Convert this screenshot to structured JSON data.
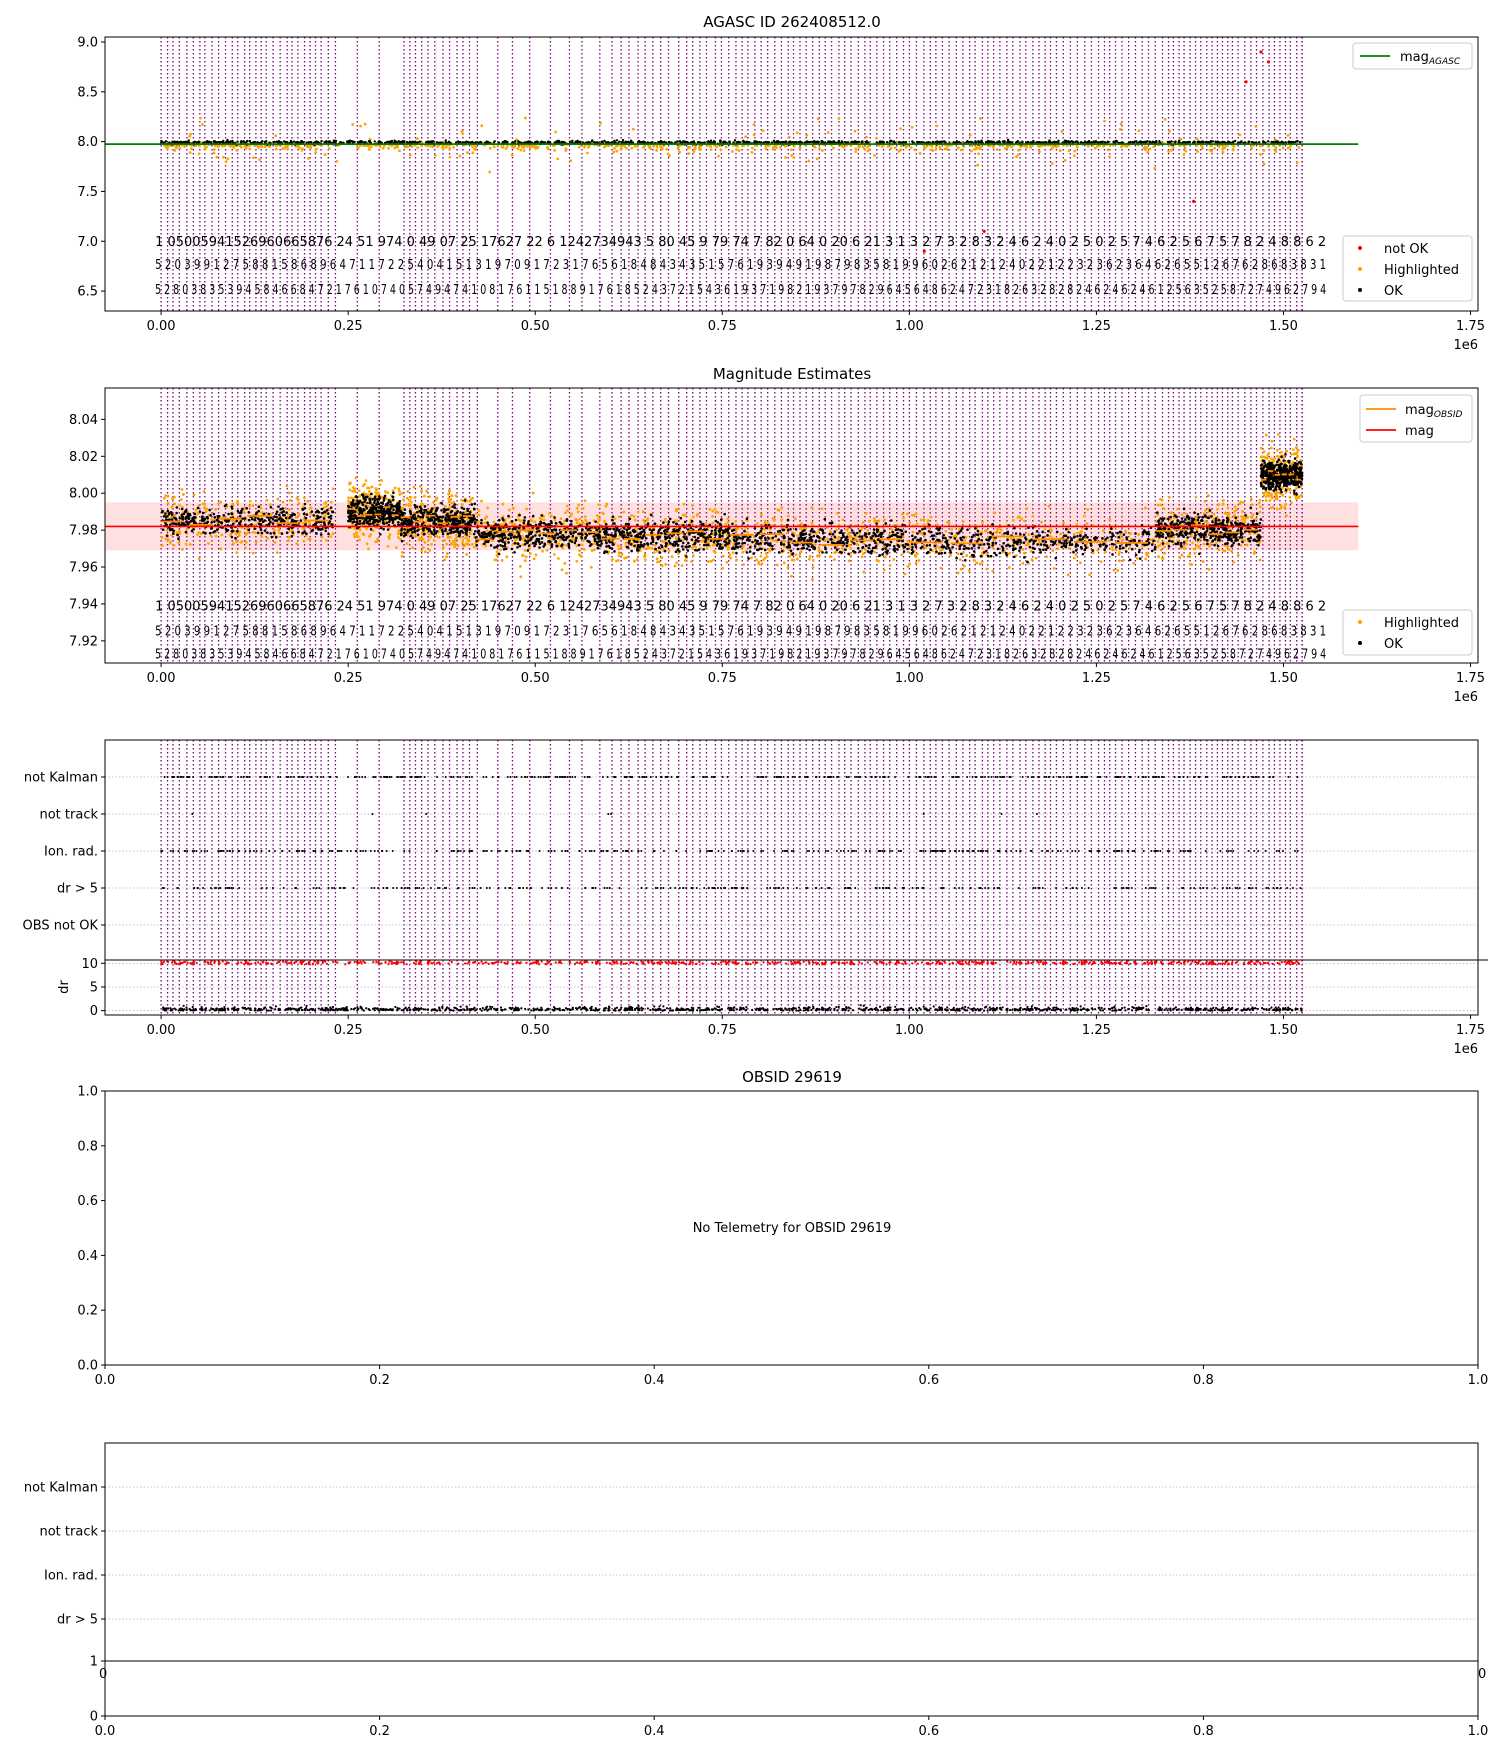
{
  "chart_data": [
    {
      "id": "agasc",
      "type": "scatter",
      "title": "AGASC ID 262408512.0",
      "xlim": [
        -75000,
        1760000
      ],
      "ylim": [
        6.3,
        9.05
      ],
      "xticks": [
        0,
        250000,
        500000,
        750000,
        1000000,
        1250000,
        1500000,
        1750000
      ],
      "xtick_labels": [
        "0.00",
        "0.25",
        "0.50",
        "0.75",
        "1.00",
        "1.25",
        "1.50",
        "1.75"
      ],
      "x_offset_label": "1e6",
      "yticks": [
        6.5,
        7.0,
        7.5,
        8.0,
        8.5,
        9.0
      ],
      "ytick_labels": [
        "6.5",
        "7.0",
        "7.5",
        "8.0",
        "8.5",
        "9.0"
      ],
      "legend_upper": [
        {
          "label": "mag",
          "sub": "AGASC",
          "color": "#008000",
          "kind": "line"
        }
      ],
      "legend_lower": [
        {
          "label": "not OK",
          "color": "#ff0000",
          "kind": "dot"
        },
        {
          "label": "Highlighted",
          "color": "#ffa500",
          "kind": "dot"
        },
        {
          "label": "OK",
          "color": "#000000",
          "kind": "dot"
        }
      ],
      "legend_upper_position": "top-right",
      "legend_lower_position": "bottom-right",
      "agasc_mag": 7.975,
      "agasc_x": [
        -75000,
        1600000
      ],
      "ok_level": 7.99,
      "data_x": [
        0,
        1525000
      ],
      "ok_spread": 0.06,
      "highlight_spread": 0.35,
      "red_points": [
        [
          1470000,
          8.9
        ],
        [
          1480000,
          8.8
        ],
        [
          1020000,
          6.9
        ],
        [
          1100000,
          7.1
        ],
        [
          1380000,
          7.4
        ],
        [
          1450000,
          8.6
        ]
      ],
      "obsid_label_rows": [
        {
          "level": 6.95,
          "text": "1 05005941526960665876 24   51 974 0 49 07 25  17627 22 6 1242734943 5 80 45 9 79 74 7 82 0 64 0 20 6 21 3 1 3 2 7 3 2 8 3 2 4 6 2 4 0 2 5 0 2 5 7 4 6 2 5 6 7 5 7 8 2 4 8 8 6 2"
        },
        {
          "level": 6.72,
          "text": "5 2 0 3 9 9 1 2 7 5 8 8 1 5 8 6 8 9 6 4 7 1    1 7 2 2 5 4 0 4 1 5 1 3 1 9 7 0 9   1 7 2 3 1 7 6 5 6   1 8 4 8 4 3 4 3 5 1 5 7 6 1 9 3 9 4 9 1 9 8 7 9 8 3 5 8 1 9 9 6 0 2 6 2 1 2 1 2 4 0 2 2 1 2 2 3 2 3 6 2 3 6 4 6 2 6 5 5 1 2 6 7 6 2 8 6 8 3 8 3 1"
        },
        {
          "level": 6.47,
          "text": "5 2 8 0 3 8 3 5 3 9 4 5 8 4 6 6 8 4 7 2 1 7 6 1 0 7 4 0 5 7 4 9 4 7 4 1 0 8 1 7 6 1 1  5 1 8 8 9  1 7 6 1 8 5 2 4 3 7 2 1 5 4 3 6 1 9 3 7 1 9 8 2 1 9 3 7 9 7 8 2 9 6 4 5 6 4 8 6 2 4 7 2 3 1 8 2 6 3 2 8 2 8 2 4 6 2 4 6 2 4 6 1 2 5 6 3 5 2 5 8 7 2 7 4 9 6 2 7 9 4"
        }
      ],
      "obs_boundaries_note": "purple dotted vertical lines mark observation boundaries"
    },
    {
      "id": "magest",
      "type": "scatter",
      "title": "Magnitude Estimates",
      "xlim": [
        -75000,
        1760000
      ],
      "ylim": [
        7.908,
        8.057
      ],
      "xticks": [
        0,
        250000,
        500000,
        750000,
        1000000,
        1250000,
        1500000,
        1750000
      ],
      "xtick_labels": [
        "0.00",
        "0.25",
        "0.50",
        "0.75",
        "1.00",
        "1.25",
        "1.50",
        "1.75"
      ],
      "x_offset_label": "1e6",
      "yticks": [
        7.92,
        7.94,
        7.96,
        7.98,
        8.0,
        8.02,
        8.04
      ],
      "ytick_labels": [
        "7.92",
        "7.94",
        "7.96",
        "7.98",
        "8.00",
        "8.02",
        "8.04"
      ],
      "legend_upper": [
        {
          "label": "mag",
          "sub": "OBSID",
          "color": "#ff8c00",
          "kind": "line"
        },
        {
          "label": "mag",
          "sub": "",
          "color": "#ff0000",
          "kind": "line"
        }
      ],
      "legend_lower": [
        {
          "label": "Highlighted",
          "color": "#ffa500",
          "kind": "dot"
        },
        {
          "label": "OK",
          "color": "#000000",
          "kind": "dot"
        }
      ],
      "mag_mean": 7.982,
      "mag_band": [
        7.969,
        7.995
      ],
      "mag_x": [
        -75000,
        1600000
      ],
      "segments": [
        {
          "x0": 0,
          "x1": 230000,
          "mag": 7.985
        },
        {
          "x0": 250000,
          "x1": 320000,
          "mag": 7.99
        },
        {
          "x0": 320000,
          "x1": 420000,
          "mag": 7.985
        },
        {
          "x0": 420000,
          "x1": 590000,
          "mag": 7.978
        },
        {
          "x0": 590000,
          "x1": 760000,
          "mag": 7.977
        },
        {
          "x0": 760000,
          "x1": 1000000,
          "mag": 7.975
        },
        {
          "x0": 1000000,
          "x1": 1330000,
          "mag": 7.974
        },
        {
          "x0": 1330000,
          "x1": 1470000,
          "mag": 7.98
        },
        {
          "x0": 1470000,
          "x1": 1525000,
          "mag": 8.01
        }
      ],
      "obsid_label_rows": [
        {
          "level": 7.9365,
          "text": "1 05005941526960665876 24   51 974 0 49 07 25  17627 22 6 1242734943 5 80 45 9 79 74 7 82 0 64 0 20 6 21 3 1 3 2 7 3 2 8 3 2 4 6 2 4 0 2 5 0 2 5 7 4 6 2 5 6 7 5 7 8 2 4 8 8 6 2"
        },
        {
          "level": 7.923,
          "text": "5 2 0 3 9 9 1 2 7 5 8 8 1 5 8 6 8 9 6 4 7 1    1 7 2 2 5 4 0 4 1 5 1 3 1 9 7 0 9   1 7 2 3 1 7 6 5 6   1 8 4 8 4 3 4 3 5 1 5 7 6 1 9 3 9 4 9 1 9 8 7 9 8 3 5 8 1 9 9 6 0 2 6 2 1 2 1 2 4 0 2 2 1 2 2 3 2 3 6 2 3 6 4 6 2 6 5 5 1 2 6 7 6 2 8 6 8 3 8 3 1"
        },
        {
          "level": 7.9105,
          "text": "5 2 8 0 3 8 3 5 3 9 4 5 8 4 6 6 8 4 7 2 1 7 6 1 0 7 4 0 5 7 4 9 4 7 4 1 0 8 1 7 6 1 1  5 1 8 8 9  1 7 6 1 8 5 2 4 3 7 2 1 5 4 3 6 1 9 3 7 1 9 8 2 1 9 3 7 9 7 8 2 9 6 4 5 6 4 8 6 2 4 7 2 3 1 8 2 6 3 2 8 2 8 2 4 6 2 4 6 2 4 6 1 2 5 6 3 5 2 5 8 7 2 7 4 9 6 2 7 9 4"
        }
      ]
    },
    {
      "id": "flags",
      "type": "scatter",
      "title": "",
      "xlim": [
        -75000,
        1760000
      ],
      "flag_labels": [
        "not Kalman",
        "not track",
        "Ion. rad.",
        "dr > 5",
        "OBS not OK"
      ],
      "flag_density": [
        0.9,
        0.02,
        0.75,
        0.6,
        0.0
      ],
      "dr_ylabel": "dr",
      "dr_yticks": [
        0,
        5,
        10
      ],
      "dr_ytick_labels": [
        "0",
        "5",
        "10"
      ],
      "dr_ylim": [
        -0.5,
        10.7
      ],
      "dr_threshold": 10,
      "xticks": [
        0,
        250000,
        500000,
        750000,
        1000000,
        1250000,
        1500000,
        1750000
      ],
      "xtick_labels": [
        "0.00",
        "0.25",
        "0.50",
        "0.75",
        "1.00",
        "1.25",
        "1.50",
        "1.75"
      ],
      "x_offset_label": "1e6"
    },
    {
      "id": "obsid",
      "type": "scatter",
      "title": "OBSID 29619",
      "message": "No Telemetry for OBSID 29619",
      "xlim": [
        0,
        1
      ],
      "ylim": [
        0,
        1
      ],
      "xticks": [
        0,
        0.2,
        0.4,
        0.6,
        0.8,
        1.0
      ],
      "xtick_labels": [
        "0.0",
        "0.2",
        "0.4",
        "0.6",
        "0.8",
        "1.0"
      ],
      "yticks": [
        0,
        0.2,
        0.4,
        0.6,
        0.8,
        1.0
      ],
      "ytick_labels": [
        "0.0",
        "0.2",
        "0.4",
        "0.6",
        "0.8",
        "1.0"
      ]
    },
    {
      "id": "emptyflags",
      "type": "scatter",
      "title": "",
      "flag_labels": [
        "not Kalman",
        "not track",
        "Ion. rad.",
        "dr > 5"
      ],
      "sub_ytick_top": "1",
      "sub_ytick_bottom": "0",
      "overlap_left_label": "0",
      "overlap_right_label": "0",
      "xticks": [
        0,
        0.2,
        0.4,
        0.6,
        0.8,
        1.0
      ],
      "xtick_labels": [
        "0.0",
        "0.2",
        "0.4",
        "0.6",
        "0.8",
        "1.0"
      ]
    }
  ]
}
